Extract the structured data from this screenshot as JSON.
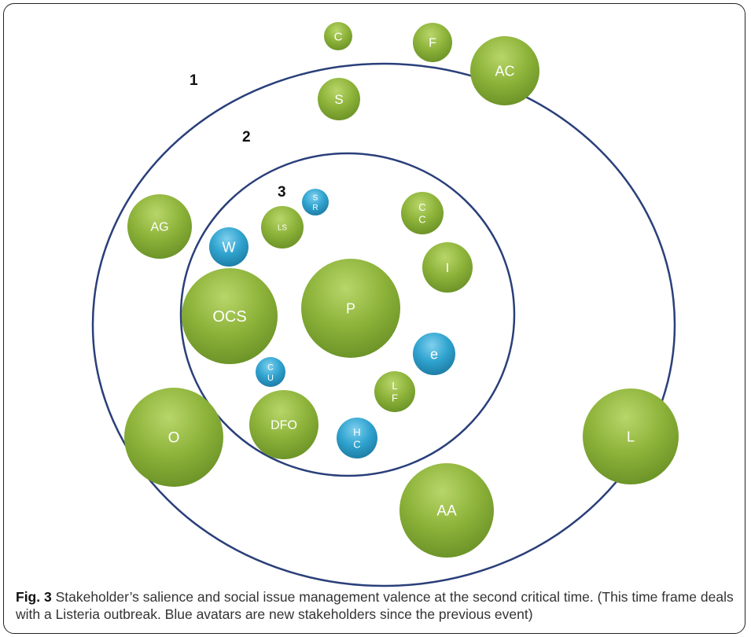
{
  "diagram": {
    "ring_labels": [
      "1",
      "2",
      "3"
    ],
    "colors": {
      "existing": "#8db33a",
      "existing_dark": "#6d9428",
      "new": "#2fa3cf",
      "new_dark": "#1f7ea6",
      "ring": "#2a3f7a"
    },
    "bubbles": [
      {
        "label": "C",
        "kind": "existing"
      },
      {
        "label": "F",
        "kind": "existing"
      },
      {
        "label": "AC",
        "kind": "existing"
      },
      {
        "label": "S",
        "kind": "existing"
      },
      {
        "label": "AG",
        "kind": "existing"
      },
      {
        "label": "W",
        "kind": "new"
      },
      {
        "label": "LS",
        "kind": "existing"
      },
      {
        "label": "S R",
        "kind": "new"
      },
      {
        "label": "C C",
        "kind": "existing"
      },
      {
        "label": "I",
        "kind": "existing"
      },
      {
        "label": "OCS",
        "kind": "existing"
      },
      {
        "label": "P",
        "kind": "existing"
      },
      {
        "label": "e",
        "kind": "new"
      },
      {
        "label": "C U",
        "kind": "new"
      },
      {
        "label": "L F",
        "kind": "existing"
      },
      {
        "label": "O",
        "kind": "existing"
      },
      {
        "label": "DFO",
        "kind": "existing"
      },
      {
        "label": "H C",
        "kind": "new"
      },
      {
        "label": "L",
        "kind": "existing"
      },
      {
        "label": "AA",
        "kind": "existing"
      }
    ]
  },
  "caption": {
    "fig_label": "Fig. 3",
    "text": " Stakeholder’s salience and social issue management valence at the second critical time. (This time frame deals with a Listeria outbreak. Blue avatars are new stakeholders since the previous event)"
  }
}
